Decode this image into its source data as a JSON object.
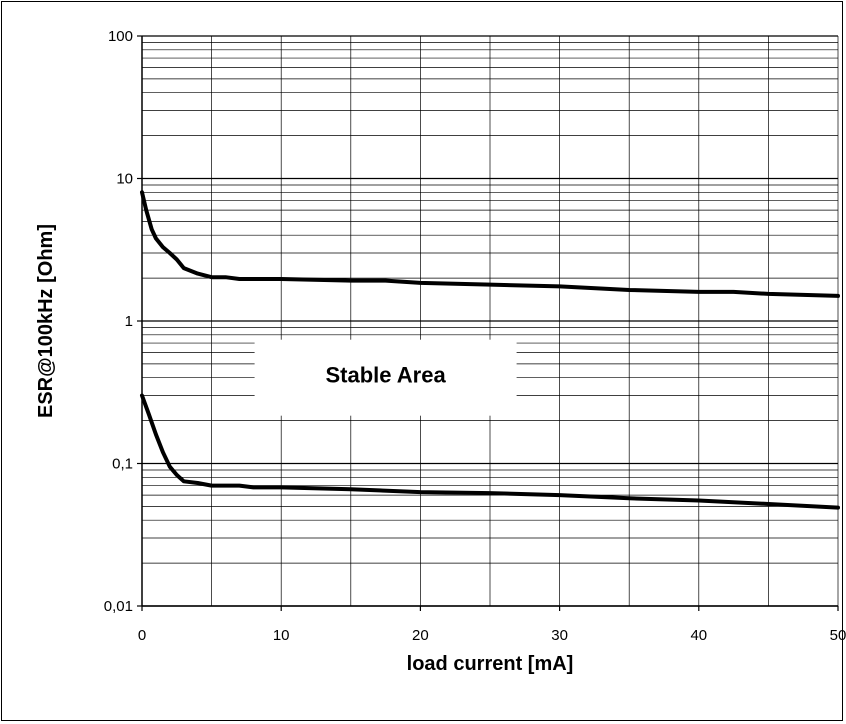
{
  "chart_data": {
    "type": "line",
    "title": "",
    "xlabel": "load current [mA]",
    "ylabel": "ESR@100kHz [Ohm]",
    "xlim": [
      0,
      50
    ],
    "ylim": [
      0.01,
      100
    ],
    "yscale": "log",
    "grid": true,
    "legend": "none",
    "x_ticks": [
      0,
      10,
      20,
      30,
      40,
      50
    ],
    "x_tick_labels": [
      "0",
      "10",
      "20",
      "30",
      "40",
      "50"
    ],
    "y_ticks": [
      0.01,
      0.1,
      1,
      10,
      100
    ],
    "y_tick_labels": [
      "0,01",
      "0,1",
      "1",
      "10",
      "100"
    ],
    "annotations": [
      {
        "text": "Stable Area",
        "x": 17.5,
        "y": 0.42
      }
    ],
    "series": [
      {
        "color": "#000000",
        "x": [
          0,
          0.3,
          0.7,
          1,
          1.5,
          2,
          2.5,
          3,
          4,
          5,
          6,
          7,
          8,
          10,
          15,
          17.5,
          20,
          25,
          30,
          35,
          40,
          42.5,
          45,
          50
        ],
        "y": [
          8,
          6,
          4.4,
          3.8,
          3.3,
          3.0,
          2.7,
          2.35,
          2.15,
          2.03,
          2.03,
          1.97,
          1.97,
          1.97,
          1.92,
          1.92,
          1.85,
          1.8,
          1.75,
          1.65,
          1.6,
          1.6,
          1.55,
          1.5
        ]
      },
      {
        "color": "#000000",
        "x": [
          0,
          0.5,
          1,
          1.5,
          2,
          2.5,
          3,
          4,
          5,
          6,
          7,
          8,
          10,
          15,
          20,
          25,
          30,
          35,
          40,
          45,
          50
        ],
        "y": [
          0.3,
          0.22,
          0.16,
          0.12,
          0.095,
          0.083,
          0.075,
          0.073,
          0.07,
          0.07,
          0.07,
          0.068,
          0.068,
          0.066,
          0.063,
          0.062,
          0.06,
          0.057,
          0.055,
          0.052,
          0.049
        ]
      }
    ]
  }
}
